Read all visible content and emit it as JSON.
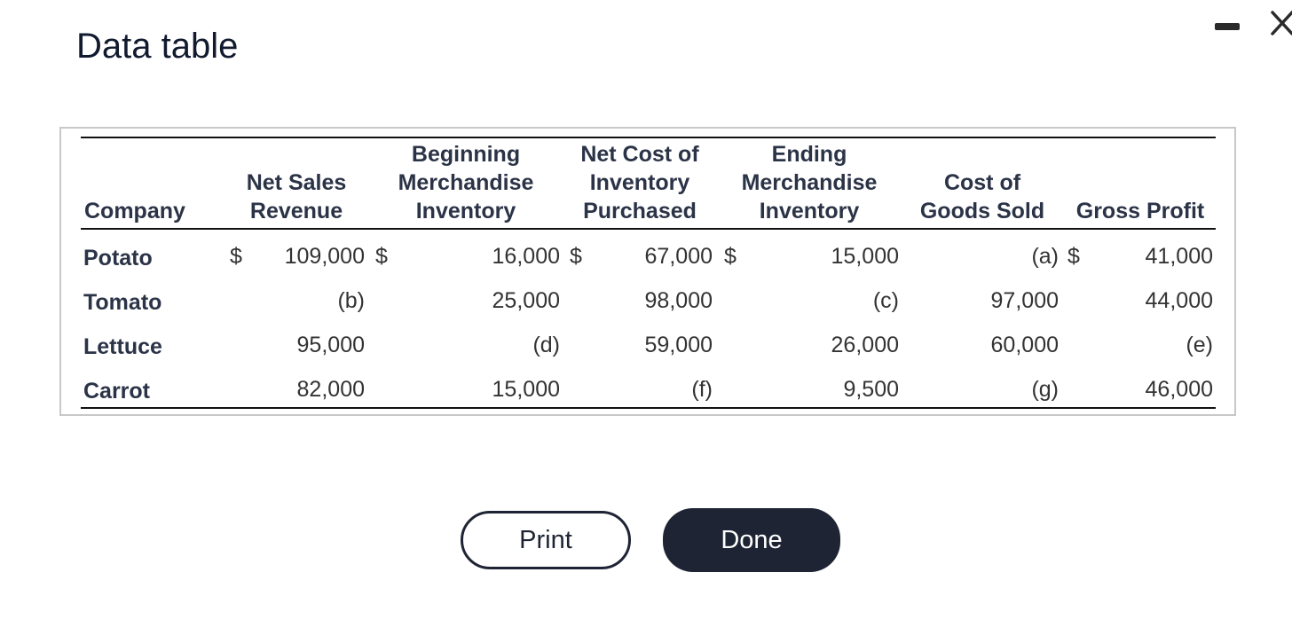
{
  "dialog": {
    "title": "Data table",
    "minimize_label": "",
    "close_label": ""
  },
  "table": {
    "headers": {
      "company": [
        "Company"
      ],
      "net_sales": [
        "Net Sales",
        "Revenue"
      ],
      "beg_inv": [
        "Beginning",
        "Merchandise",
        "Inventory"
      ],
      "net_cost": [
        "Net Cost of",
        "Inventory",
        "Purchased"
      ],
      "end_inv": [
        "Ending",
        "Merchandise",
        "Inventory"
      ],
      "cogs": [
        "Cost of",
        "Goods Sold"
      ],
      "gross_profit": [
        "Gross Profit"
      ]
    },
    "currency_symbol": "$",
    "rows": [
      {
        "company": "Potato",
        "net_sales": "109,000",
        "beg_inv": "16,000",
        "net_cost": "67,000",
        "end_inv": "15,000",
        "cogs": "(a)",
        "gross_profit": "41,000"
      },
      {
        "company": "Tomato",
        "net_sales": "(b)",
        "beg_inv": "25,000",
        "net_cost": "98,000",
        "end_inv": "(c)",
        "cogs": "97,000",
        "gross_profit": "44,000"
      },
      {
        "company": "Lettuce",
        "net_sales": "95,000",
        "beg_inv": "(d)",
        "net_cost": "59,000",
        "end_inv": "26,000",
        "cogs": "60,000",
        "gross_profit": "(e)"
      },
      {
        "company": "Carrot",
        "net_sales": "82,000",
        "beg_inv": "15,000",
        "net_cost": "(f)",
        "end_inv": "9,500",
        "cogs": "(g)",
        "gross_profit": "46,000"
      }
    ]
  },
  "buttons": {
    "print": "Print",
    "done": "Done"
  },
  "colors": {
    "primary_dark": "#1e2433",
    "header_text": "#2b3347",
    "border": "#c8c8c8"
  }
}
